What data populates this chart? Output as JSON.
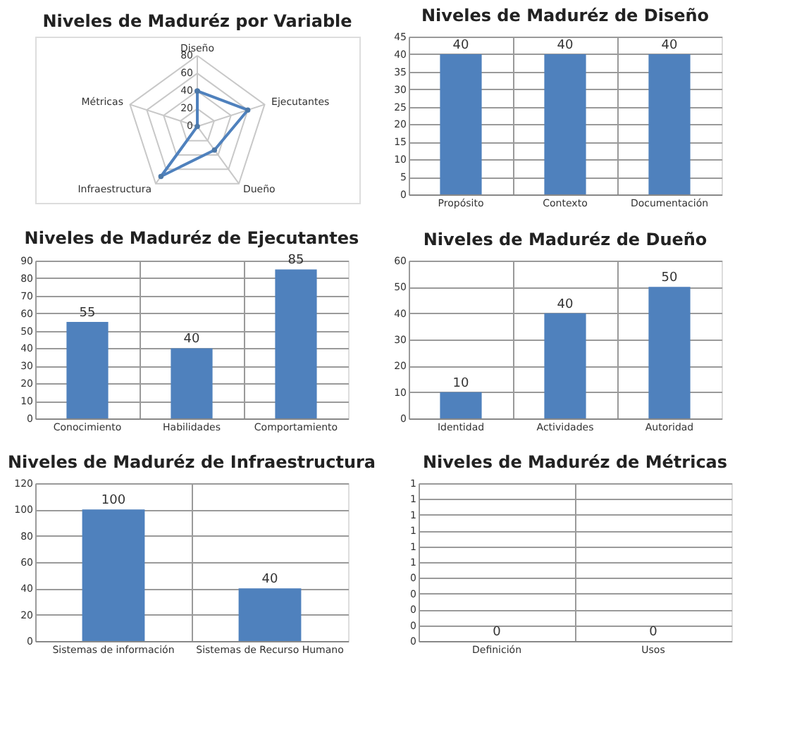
{
  "chart_data": [
    {
      "type": "radar",
      "title": "Niveles de Maduréz por Variable",
      "categories": [
        "Diseño",
        "Ejecutantes",
        "Dueño",
        "Infraestructura",
        "Métricas"
      ],
      "series": [
        {
          "color": "#4f81bd",
          "values": [
            40,
            60,
            33,
            70,
            0
          ]
        }
      ],
      "ylim": [
        0,
        80
      ],
      "yticks": [
        0,
        20,
        40,
        60,
        80
      ],
      "grid": true,
      "marker": "circle"
    },
    {
      "type": "bar",
      "title": "Niveles de Maduréz de Diseño",
      "categories": [
        "Propósito",
        "Contexto",
        "Documentación"
      ],
      "values": [
        40,
        40,
        40
      ],
      "color": "#4f81bd",
      "ylim": [
        0,
        45
      ],
      "yticks": [
        0,
        5,
        10,
        15,
        20,
        25,
        30,
        35,
        40,
        45
      ],
      "grid": true,
      "data_labels": true
    },
    {
      "type": "bar",
      "title": "Niveles de Maduréz de Ejecutantes",
      "categories": [
        "Conocimiento",
        "Habilidades",
        "Comportamiento"
      ],
      "values": [
        55,
        40,
        85
      ],
      "color": "#4f81bd",
      "ylim": [
        0,
        90
      ],
      "yticks": [
        0,
        10,
        20,
        30,
        40,
        50,
        60,
        70,
        80,
        90
      ],
      "grid": true,
      "data_labels": true
    },
    {
      "type": "bar",
      "title": "Niveles de Maduréz de Dueño",
      "categories": [
        "Identidad",
        "Actividades",
        "Autoridad"
      ],
      "values": [
        10,
        40,
        50
      ],
      "color": "#4f81bd",
      "ylim": [
        0,
        60
      ],
      "yticks": [
        0,
        10,
        20,
        30,
        40,
        50,
        60
      ],
      "grid": true,
      "data_labels": true
    },
    {
      "type": "bar",
      "title": "Niveles de Maduréz de Infraestructura",
      "categories": [
        "Sistemas de información",
        "Sistemas de Recurso Humano"
      ],
      "values": [
        100,
        40
      ],
      "color": "#4f81bd",
      "ylim": [
        0,
        120
      ],
      "yticks": [
        0,
        20,
        40,
        60,
        80,
        100,
        120
      ],
      "grid": true,
      "data_labels": true
    },
    {
      "type": "bar",
      "title": "Niveles de Maduréz de Métricas",
      "categories": [
        "Definición",
        "Usos"
      ],
      "values": [
        0,
        0
      ],
      "color": "#4f81bd",
      "ylim": [
        0,
        1
      ],
      "yticks": [
        {
          "value": 0,
          "label": "0"
        },
        {
          "value": 0.1,
          "label": "0"
        },
        {
          "value": 0.2,
          "label": "0"
        },
        {
          "value": 0.3,
          "label": "0"
        },
        {
          "value": 0.4,
          "label": "0"
        },
        {
          "value": 0.5,
          "label": "1"
        },
        {
          "value": 0.6,
          "label": "1"
        },
        {
          "value": 0.7,
          "label": "1"
        },
        {
          "value": 0.8,
          "label": "1"
        },
        {
          "value": 0.9,
          "label": "1"
        },
        1
      ],
      "grid": true,
      "data_labels": true
    }
  ]
}
